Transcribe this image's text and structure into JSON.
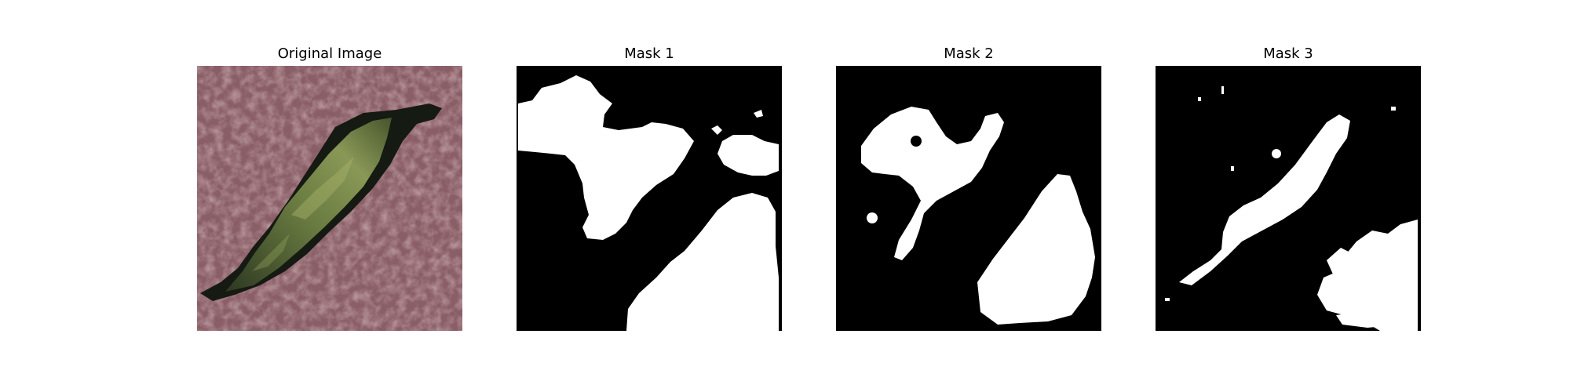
{
  "figure": {
    "panels": [
      {
        "title": "Original Image"
      },
      {
        "title": "Mask 1"
      },
      {
        "title": "Mask 2"
      },
      {
        "title": "Mask 3"
      }
    ]
  },
  "colors": {
    "background": "#ffffff",
    "mask_foreground": "#ffffff",
    "mask_background": "#000000",
    "tissue_base": "#8c5f66",
    "lesion_green": "#8a9a55",
    "lesion_shadow": "#141812"
  }
}
